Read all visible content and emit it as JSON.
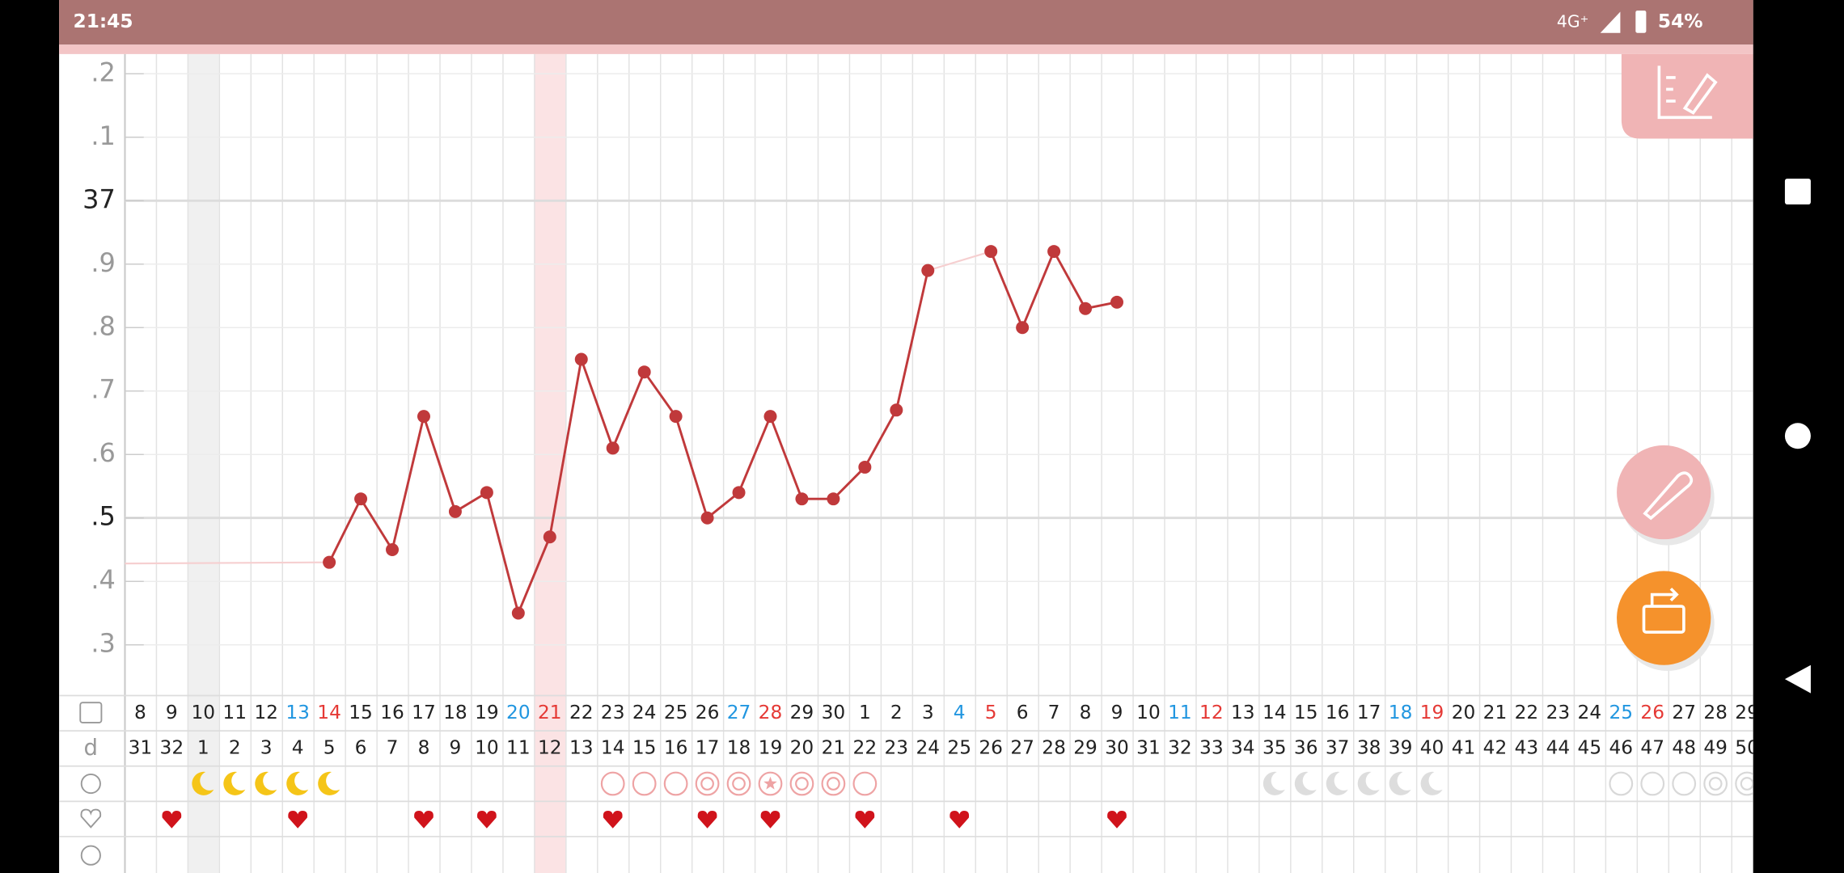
{
  "status_bar": {
    "time": "21:45",
    "network": "4G⁺",
    "battery": "54%"
  },
  "chart_data": {
    "type": "line",
    "row_label": "d",
    "categories": [
      "8",
      "9",
      "10",
      "11",
      "12",
      "13",
      "14",
      "15",
      "16",
      "17",
      "18",
      "19",
      "20",
      "21",
      "22",
      "23",
      "24",
      "25",
      "26",
      "27",
      "28",
      "29",
      "30",
      "1",
      "2",
      "3",
      "4",
      "5",
      "6",
      "7",
      "8",
      "9",
      "10",
      "11",
      "12",
      "13",
      "14",
      "15",
      "16",
      "17",
      "18",
      "19",
      "20",
      "21",
      "22",
      "23",
      "24",
      "25",
      "26",
      "27",
      "28",
      "29"
    ],
    "cycle_days": [
      "31",
      "32",
      "1",
      "2",
      "3",
      "4",
      "5",
      "6",
      "7",
      "8",
      "9",
      "10",
      "11",
      "12",
      "13",
      "14",
      "15",
      "16",
      "17",
      "18",
      "19",
      "20",
      "21",
      "22",
      "23",
      "24",
      "25",
      "26",
      "27",
      "28",
      "29",
      "30",
      "31",
      "32",
      "33",
      "34",
      "35",
      "36",
      "37",
      "38",
      "39",
      "40",
      "41",
      "42",
      "43",
      "44",
      "45",
      "46",
      "47",
      "48",
      "49",
      "50"
    ],
    "date_colors": [
      "#222",
      "#222",
      "#222",
      "#222",
      "#222",
      "#2196e0",
      "#e53935",
      "#222",
      "#222",
      "#222",
      "#222",
      "#222",
      "#2196e0",
      "#e53935",
      "#222",
      "#222",
      "#222",
      "#222",
      "#222",
      "#2196e0",
      "#e53935",
      "#222",
      "#222",
      "#222",
      "#222",
      "#222",
      "#2196e0",
      "#e53935",
      "#222",
      "#222",
      "#222",
      "#222",
      "#222",
      "#2196e0",
      "#e53935",
      "#222",
      "#222",
      "#222",
      "#222",
      "#222",
      "#2196e0",
      "#e53935",
      "#222",
      "#222",
      "#222",
      "#222",
      "#222",
      "#2196e0",
      "#e53935",
      "#222",
      "#222",
      "#222"
    ],
    "series": [
      {
        "color": "#c0393b",
        "values": [
          null,
          null,
          null,
          null,
          null,
          null,
          36.43,
          36.53,
          36.45,
          36.66,
          36.51,
          36.54,
          36.35,
          36.47,
          36.75,
          36.61,
          36.73,
          36.66,
          36.5,
          36.54,
          36.66,
          36.53,
          36.53,
          36.58,
          36.67,
          36.89,
          null,
          36.92,
          36.8,
          36.92,
          36.83,
          36.84,
          null,
          null,
          null,
          null,
          null,
          null,
          null,
          null,
          null,
          null,
          null,
          null,
          null,
          null,
          null,
          null,
          null,
          null,
          null,
          null
        ]
      }
    ],
    "ylim": [
      36.22,
      37.22
    ],
    "yticks": [
      {
        "value": 36.3,
        "label": ".3"
      },
      {
        "value": 36.4,
        "label": ".4"
      },
      {
        "value": 36.5,
        "label": ".5"
      },
      {
        "value": 36.6,
        "label": ".6"
      },
      {
        "value": 36.7,
        "label": ".7"
      },
      {
        "value": 36.8,
        "label": ".8"
      },
      {
        "value": 36.9,
        "label": ".9"
      },
      37,
      {
        "value": 37.1,
        "label": ".1"
      },
      {
        "value": 37.2,
        "label": ".2"
      }
    ],
    "major_yticks": [
      36.5,
      37
    ],
    "grid": true,
    "grey_column": 2,
    "highlight_column": 13,
    "cycle_symbols": [
      null,
      null,
      "moon",
      "moon",
      "moon",
      "moon",
      "moon",
      null,
      null,
      null,
      null,
      null,
      null,
      null,
      null,
      "ring",
      "ring",
      "ring",
      "target",
      "target",
      "star",
      "target",
      "target",
      "ring",
      null,
      null,
      null,
      null,
      null,
      null,
      null,
      null,
      null,
      null,
      null,
      null,
      "moon-grey",
      "moon-grey",
      "moon-grey",
      "moon-grey",
      "moon-grey",
      "moon-grey",
      null,
      null,
      null,
      null,
      null,
      "ring-grey",
      "ring-grey",
      "ring-grey",
      "target-grey",
      "target-grey"
    ],
    "hearts": [
      false,
      true,
      false,
      false,
      false,
      true,
      false,
      false,
      false,
      true,
      false,
      true,
      false,
      false,
      false,
      true,
      false,
      false,
      true,
      false,
      true,
      false,
      false,
      true,
      false,
      false,
      true,
      false,
      false,
      false,
      false,
      true,
      false,
      false,
      false,
      false,
      false,
      false,
      false,
      false,
      false,
      false,
      false,
      false,
      false,
      false,
      false,
      false,
      false,
      false,
      false,
      false
    ]
  }
}
